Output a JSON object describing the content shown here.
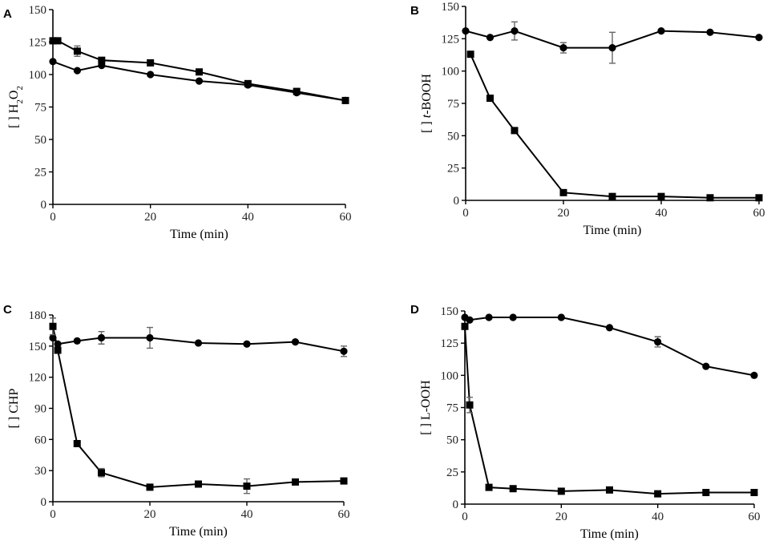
{
  "chart_data": [
    {
      "type": "line",
      "panel": "A",
      "ylabel_prefix": "[ ] ",
      "ylabel": "H2O2",
      "ylabel_parts": [
        "H",
        "2",
        "O",
        "2"
      ],
      "xlabel": "Time (min)",
      "xlim": [
        0,
        60
      ],
      "ylim": [
        0,
        150
      ],
      "xticks": [
        "0",
        "20",
        "40",
        "60"
      ],
      "yticks": [
        "0",
        "25",
        "50",
        "75",
        "100",
        "125",
        "150"
      ],
      "series": [
        {
          "name": "circle",
          "marker": "circle",
          "x": [
            0,
            5,
            10,
            20,
            30,
            40,
            50,
            60
          ],
          "values": [
            110,
            103,
            107,
            100,
            95,
            92,
            86,
            80
          ],
          "err": [
            0,
            0,
            0,
            0,
            0,
            0,
            0,
            0
          ]
        },
        {
          "name": "square",
          "marker": "square",
          "x": [
            0,
            1,
            5,
            10,
            20,
            30,
            40,
            50,
            60
          ],
          "values": [
            126,
            126,
            118,
            111,
            109,
            102,
            93,
            87,
            80
          ],
          "err": [
            0,
            0,
            4,
            0,
            0,
            0,
            0,
            0,
            0
          ]
        }
      ]
    },
    {
      "type": "line",
      "panel": "B",
      "ylabel_prefix": "[ ] ",
      "ylabel": "t-BOOH",
      "ylabel_parts": [
        "t",
        "-BOOH"
      ],
      "xlabel": "Time (min)",
      "xlim": [
        0,
        60
      ],
      "ylim": [
        0,
        150
      ],
      "xticks": [
        "0",
        "20",
        "40",
        "60"
      ],
      "yticks": [
        "0",
        "25",
        "50",
        "75",
        "100",
        "125",
        "150"
      ],
      "series": [
        {
          "name": "circle",
          "marker": "circle",
          "x": [
            0,
            5,
            10,
            20,
            30,
            40,
            50,
            60
          ],
          "values": [
            131,
            126,
            131,
            118,
            118,
            131,
            130,
            126
          ],
          "err": [
            0,
            0,
            7,
            4,
            12,
            0,
            0,
            0
          ]
        },
        {
          "name": "square",
          "marker": "square",
          "x": [
            1,
            5,
            10,
            20,
            30,
            40,
            50,
            60
          ],
          "values": [
            113,
            79,
            54,
            6,
            3,
            3,
            2,
            2
          ],
          "err": [
            0,
            0,
            0,
            0,
            0,
            0,
            0,
            0
          ]
        }
      ]
    },
    {
      "type": "line",
      "panel": "C",
      "ylabel_prefix": "[ ] ",
      "ylabel": "CHP",
      "ylabel_parts": [
        "CHP"
      ],
      "xlabel": "Time (min)",
      "xlim": [
        0,
        60
      ],
      "ylim": [
        0,
        180
      ],
      "xticks": [
        "0",
        "20",
        "40",
        "60"
      ],
      "yticks": [
        "0",
        "30",
        "60",
        "90",
        "120",
        "150",
        "180"
      ],
      "series": [
        {
          "name": "circle",
          "marker": "circle",
          "x": [
            0,
            1,
            5,
            10,
            20,
            30,
            40,
            50,
            60
          ],
          "values": [
            158,
            152,
            155,
            158,
            158,
            153,
            152,
            154,
            145
          ],
          "err": [
            0,
            0,
            0,
            6,
            10,
            0,
            0,
            0,
            5
          ]
        },
        {
          "name": "square",
          "marker": "square",
          "x": [
            0,
            1,
            5,
            10,
            20,
            30,
            40,
            50,
            60
          ],
          "values": [
            169,
            146,
            56,
            28,
            14,
            17,
            15,
            19,
            20
          ],
          "err": [
            8,
            0,
            0,
            4,
            0,
            0,
            7,
            0,
            0
          ]
        }
      ]
    },
    {
      "type": "line",
      "panel": "D",
      "ylabel_prefix": "[ ] ",
      "ylabel": "L-OOH",
      "ylabel_parts": [
        "L-OOH"
      ],
      "xlabel": "Time (min)",
      "xlim": [
        0,
        60
      ],
      "ylim": [
        0,
        150
      ],
      "xticks": [
        "0",
        "20",
        "40",
        "60"
      ],
      "yticks": [
        "0",
        "25",
        "50",
        "75",
        "100",
        "125",
        "150"
      ],
      "series": [
        {
          "name": "circle",
          "marker": "circle",
          "x": [
            0,
            1,
            5,
            10,
            20,
            30,
            40,
            50,
            60
          ],
          "values": [
            145,
            143,
            145,
            145,
            145,
            137,
            126,
            107,
            100
          ],
          "err": [
            0,
            0,
            0,
            0,
            0,
            0,
            4,
            0,
            0
          ]
        },
        {
          "name": "square",
          "marker": "square",
          "x": [
            0,
            1,
            5,
            10,
            20,
            30,
            40,
            50,
            60
          ],
          "values": [
            138,
            77,
            13,
            12,
            10,
            11,
            8,
            9,
            9
          ],
          "err": [
            0,
            6,
            0,
            0,
            0,
            0,
            0,
            0,
            0
          ]
        }
      ]
    }
  ]
}
